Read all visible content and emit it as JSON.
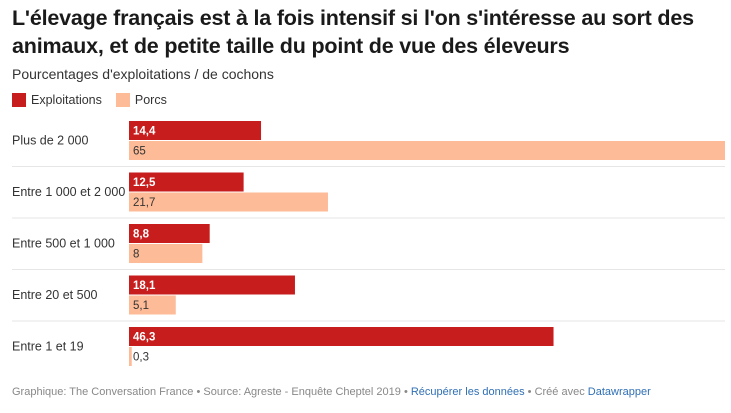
{
  "title": "L'élevage français est à la fois intensif si l'on s'intéresse au sort des animaux, et de petite taille du point de vue des éleveurs",
  "subtitle": "Pourcentages d'exploitations / de cochons",
  "colors": {
    "exploitations": "#c71e1d",
    "porcs": "#fdbb97",
    "separator": "#e6e6e6"
  },
  "chart_data": {
    "type": "bar",
    "orientation": "horizontal",
    "categories": [
      "Plus de 2 000",
      "Entre 1 000 et 2 000",
      "Entre 500 et 1 000",
      "Entre 20 et 500",
      "Entre 1 et 19"
    ],
    "series": [
      {
        "name": "Exploitations",
        "values": [
          14.4,
          12.5,
          8.8,
          18.1,
          46.3
        ],
        "labels": [
          "14,4",
          "12,5",
          "8,8",
          "18,1",
          "46,3"
        ]
      },
      {
        "name": "Porcs",
        "values": [
          65,
          21.7,
          8,
          5.1,
          0.3
        ],
        "labels": [
          "65",
          "21,7",
          "8",
          "5,1",
          "0,3"
        ]
      }
    ],
    "xlim": [
      0,
      65
    ],
    "legend_position": "top-left"
  },
  "footer": {
    "credit": "Graphique: The Conversation France • Source: Agreste - Enquête Cheptel 2019 • ",
    "data_link": "Récupérer les données",
    "separator": " • Créé avec ",
    "tool_link": "Datawrapper"
  }
}
